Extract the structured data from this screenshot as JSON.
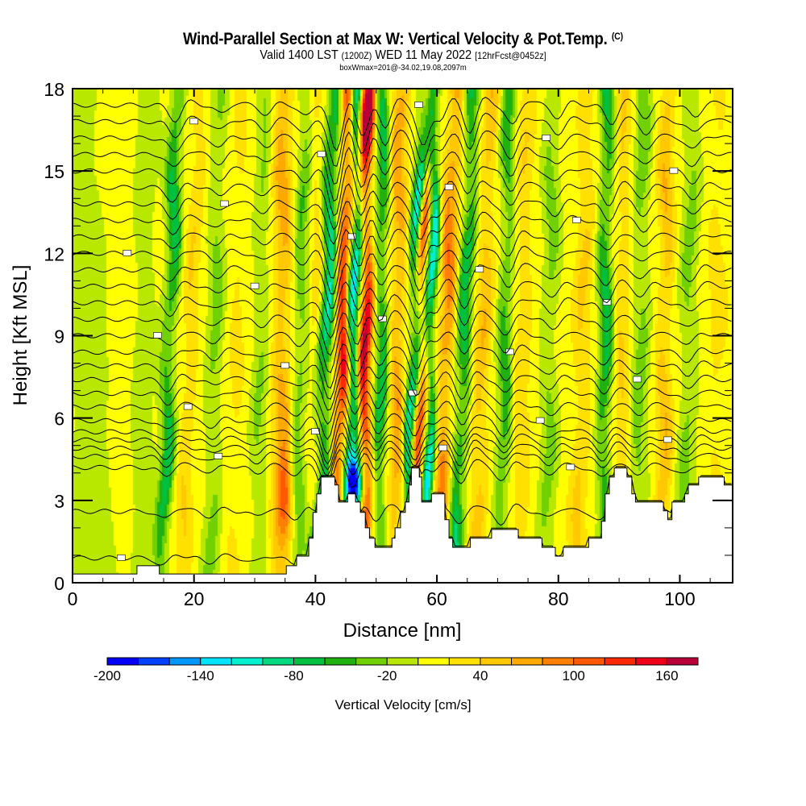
{
  "header": {
    "title": "Wind-Parallel Section at Max W: Vertical Velocity & Pot.Temp.",
    "copyright_mark": "(C)",
    "valid_prefix": "Valid 1400 LST",
    "valid_utc": "(1200Z)",
    "valid_date": "WED 11 May 2022",
    "forecast_info": "[12hrFcst@0452z]",
    "box_wmax": "boxWmax=201@-34.02,19.08,2097m"
  },
  "chart_data": {
    "type": "heatmap",
    "title": "Wind-Parallel Section at Max W: Vertical Velocity & Pot.Temp.",
    "xlabel": "Distance [nm]",
    "ylabel": "Height [Kft MSL]",
    "xlim": [
      0,
      108.7
    ],
    "ylim": [
      0,
      18
    ],
    "x_ticks": [
      0,
      20,
      40,
      60,
      80,
      100
    ],
    "x_minor_step": 5,
    "y_ticks": [
      0,
      3,
      6,
      9,
      12,
      15,
      18
    ],
    "y_minor_step": 1,
    "grid": false,
    "colorbar": {
      "title": "Vertical Velocity [cm/s]",
      "placement": "bottom",
      "levels": [
        -200,
        -180,
        -160,
        -140,
        -120,
        -100,
        -80,
        -60,
        -40,
        -20,
        0,
        20,
        40,
        60,
        80,
        100,
        120,
        140,
        160,
        180
      ],
      "tick_labels": [
        "-200",
        "-140",
        "-80",
        "-20",
        "40",
        "100",
        "160"
      ],
      "tick_values": [
        -200,
        -140,
        -80,
        -20,
        40,
        100,
        160
      ],
      "colors": [
        "#0000f8",
        "#0040ff",
        "#0098ff",
        "#00e4ff",
        "#00f0d0",
        "#00d880",
        "#00c040",
        "#20b010",
        "#70d000",
        "#b8e800",
        "#ffff00",
        "#ffe000",
        "#ffc800",
        "#ffa800",
        "#ff8000",
        "#ff5800",
        "#ff2800",
        "#f00018",
        "#b80038"
      ]
    },
    "vertical_velocity_features": [
      {
        "x": 2,
        "slope": -0.3,
        "width": 4,
        "amp": -25
      },
      {
        "x": 9,
        "slope": 0.05,
        "width": 1.6,
        "amp": 12
      },
      {
        "x": 11.5,
        "slope": 0.1,
        "width": 2,
        "amp": -28
      },
      {
        "x": 16,
        "slope": 0.25,
        "width": 1.2,
        "amp": -85
      },
      {
        "x": 19.5,
        "slope": 0.3,
        "width": 1.4,
        "amp": 35
      },
      {
        "x": 23.5,
        "slope": 0.1,
        "width": 1.5,
        "amp": -40
      },
      {
        "x": 27,
        "slope": 0.2,
        "width": 2,
        "amp": 18
      },
      {
        "x": 31,
        "slope": 0.1,
        "width": 1.5,
        "amp": -35
      },
      {
        "x": 34.5,
        "slope": 0.05,
        "width": 1.6,
        "amp": 70
      },
      {
        "x": 37.5,
        "slope": 0.15,
        "width": 1.2,
        "amp": -55
      },
      {
        "x": 40.5,
        "slope": -0.05,
        "width": 1.2,
        "amp": 35
      },
      {
        "x": 41.8,
        "slope": 0.25,
        "width": 1.3,
        "amp": -130
      },
      {
        "x": 44.5,
        "slope": 0.2,
        "width": 1.3,
        "amp": 150
      },
      {
        "x": 46.2,
        "slope": 0.2,
        "width": 1.1,
        "amp": -175
      },
      {
        "x": 48.3,
        "slope": 0.05,
        "width": 1.1,
        "amp": 170
      },
      {
        "x": 50.8,
        "slope": 0.05,
        "width": 1.2,
        "amp": -90
      },
      {
        "x": 53.5,
        "slope": 0.1,
        "width": 1.4,
        "amp": 75
      },
      {
        "x": 56.3,
        "slope": 0.25,
        "width": 1.0,
        "amp": -135
      },
      {
        "x": 57.5,
        "slope": 0.15,
        "width": 1.0,
        "amp": 120
      },
      {
        "x": 59.0,
        "slope": 0.1,
        "width": 1.0,
        "amp": -140
      },
      {
        "x": 61.5,
        "slope": 0.3,
        "width": 1.5,
        "amp": 95
      },
      {
        "x": 64.5,
        "slope": 0.3,
        "width": 1.3,
        "amp": -95
      },
      {
        "x": 67.5,
        "slope": 0.25,
        "width": 1.5,
        "amp": 55
      },
      {
        "x": 71.3,
        "slope": 0.15,
        "width": 1.3,
        "amp": -70
      },
      {
        "x": 74,
        "slope": 0.1,
        "width": 1.6,
        "amp": 35
      },
      {
        "x": 78.5,
        "slope": 0.1,
        "width": 1.4,
        "amp": -40
      },
      {
        "x": 84,
        "slope": 0.15,
        "width": 1.5,
        "amp": 40
      },
      {
        "x": 87.7,
        "slope": 0.05,
        "width": 1.2,
        "amp": -90
      },
      {
        "x": 90.5,
        "slope": 0.1,
        "width": 1.4,
        "amp": 40
      },
      {
        "x": 93.5,
        "slope": 0.05,
        "width": 1.4,
        "amp": -45
      },
      {
        "x": 97.5,
        "slope": 0.1,
        "width": 1.3,
        "amp": 55
      },
      {
        "x": 101.5,
        "slope": 0.1,
        "width": 1.5,
        "amp": -40
      },
      {
        "x": 106,
        "slope": 0.05,
        "width": 2,
        "amp": 20
      }
    ],
    "vertical_velocity_blobs": [
      {
        "x": 46.5,
        "y": 3.6,
        "rx": 1.2,
        "ry": 1.0,
        "amp": -200
      },
      {
        "x": 35,
        "y": 2.8,
        "rx": 1.3,
        "ry": 1.6,
        "amp": 70
      },
      {
        "x": 47.8,
        "y": 17.3,
        "rx": 1.0,
        "ry": 1.5,
        "amp": 120
      },
      {
        "x": 44.8,
        "y": 8.2,
        "rx": 1.0,
        "ry": 1.8,
        "amp": 60
      }
    ],
    "isentrope_base_heights_kft": [
      0.9,
      2.6,
      4.2,
      4.6,
      4.9,
      5.2,
      5.5,
      5.9,
      6.4,
      6.9,
      7.4,
      7.9,
      8.4,
      9.0,
      9.6,
      10.2,
      10.8,
      11.4,
      12.0,
      12.6,
      13.2,
      13.8,
      14.4,
      15.0,
      15.6,
      16.2,
      16.8,
      17.4
    ],
    "isentrope_waves": [
      {
        "x": 16,
        "dip": -0.5
      },
      {
        "x": 23.5,
        "dip": -0.3
      },
      {
        "x": 31,
        "dip": -0.3
      },
      {
        "x": 37.5,
        "dip": -0.4
      },
      {
        "x": 42.5,
        "dip": -1.6
      },
      {
        "x": 46.8,
        "dip": -1.2
      },
      {
        "x": 50.5,
        "dip": -0.9
      },
      {
        "x": 56.8,
        "dip": -1.4
      },
      {
        "x": 59.5,
        "dip": -0.8
      },
      {
        "x": 64.5,
        "dip": -0.9
      },
      {
        "x": 71.5,
        "dip": -0.7
      },
      {
        "x": 79,
        "dip": -0.4
      },
      {
        "x": 87.8,
        "dip": -0.6
      },
      {
        "x": 93.5,
        "dip": -0.4
      },
      {
        "x": 101.5,
        "dip": -0.4
      }
    ],
    "terrain_profile_kft": [
      [
        0,
        0.32
      ],
      [
        10.6,
        0.32
      ],
      [
        10.6,
        0.62
      ],
      [
        14.3,
        0.62
      ],
      [
        14.3,
        0.32
      ],
      [
        35.2,
        0.32
      ],
      [
        35.2,
        0.62
      ],
      [
        36.9,
        0.62
      ],
      [
        36.9,
        0.97
      ],
      [
        38.9,
        0.97
      ],
      [
        38.9,
        1.62
      ],
      [
        39.6,
        1.62
      ],
      [
        39.6,
        2.56
      ],
      [
        40.2,
        2.56
      ],
      [
        40.2,
        3.24
      ],
      [
        40.9,
        3.24
      ],
      [
        40.9,
        3.85
      ],
      [
        43.2,
        3.85
      ],
      [
        43.2,
        3.56
      ],
      [
        43.8,
        3.56
      ],
      [
        43.8,
        2.94
      ],
      [
        45.3,
        2.94
      ],
      [
        45.3,
        3.24
      ],
      [
        46.6,
        3.24
      ],
      [
        46.6,
        2.94
      ],
      [
        47.4,
        2.94
      ],
      [
        47.4,
        2.56
      ],
      [
        48.2,
        2.56
      ],
      [
        48.2,
        2.0
      ],
      [
        48.9,
        2.0
      ],
      [
        48.9,
        1.62
      ],
      [
        49.8,
        1.62
      ],
      [
        49.8,
        1.29
      ],
      [
        52.6,
        1.29
      ],
      [
        52.6,
        1.62
      ],
      [
        53.1,
        1.62
      ],
      [
        53.1,
        2.0
      ],
      [
        54.0,
        2.0
      ],
      [
        54.0,
        2.56
      ],
      [
        54.8,
        2.56
      ],
      [
        54.8,
        2.94
      ],
      [
        55.4,
        2.94
      ],
      [
        55.4,
        3.56
      ],
      [
        55.8,
        3.56
      ],
      [
        55.8,
        4.18
      ],
      [
        57.1,
        4.18
      ],
      [
        57.1,
        3.85
      ],
      [
        57.5,
        3.85
      ],
      [
        57.5,
        2.94
      ],
      [
        59.1,
        2.94
      ],
      [
        59.1,
        3.24
      ],
      [
        61.3,
        3.24
      ],
      [
        61.3,
        2.3
      ],
      [
        62.0,
        2.3
      ],
      [
        62.0,
        1.62
      ],
      [
        62.6,
        1.62
      ],
      [
        62.6,
        1.29
      ],
      [
        65.5,
        1.29
      ],
      [
        65.5,
        1.62
      ],
      [
        69.0,
        1.62
      ],
      [
        69.0,
        1.94
      ],
      [
        73.4,
        1.94
      ],
      [
        73.4,
        1.62
      ],
      [
        77.3,
        1.62
      ],
      [
        77.3,
        1.29
      ],
      [
        79.5,
        1.29
      ],
      [
        79.5,
        0.97
      ],
      [
        80.8,
        0.97
      ],
      [
        80.8,
        1.29
      ],
      [
        85.0,
        1.29
      ],
      [
        85.0,
        1.62
      ],
      [
        87.1,
        1.62
      ],
      [
        87.1,
        2.24
      ],
      [
        87.7,
        2.24
      ],
      [
        87.7,
        3.24
      ],
      [
        88.4,
        3.24
      ],
      [
        88.4,
        3.85
      ],
      [
        89.2,
        3.85
      ],
      [
        89.2,
        4.18
      ],
      [
        91.3,
        4.18
      ],
      [
        91.3,
        3.85
      ],
      [
        92.1,
        3.85
      ],
      [
        92.1,
        3.24
      ],
      [
        92.7,
        3.24
      ],
      [
        92.7,
        2.94
      ],
      [
        97.3,
        2.94
      ],
      [
        97.3,
        2.62
      ],
      [
        98.0,
        2.62
      ],
      [
        98.0,
        2.3
      ],
      [
        98.7,
        2.3
      ],
      [
        98.7,
        2.94
      ],
      [
        100.8,
        2.94
      ],
      [
        100.8,
        3.24
      ],
      [
        101.4,
        3.24
      ],
      [
        101.4,
        3.56
      ],
      [
        103.1,
        3.56
      ],
      [
        103.1,
        3.85
      ],
      [
        107.3,
        3.85
      ],
      [
        107.3,
        3.56
      ],
      [
        108.7,
        3.56
      ]
    ]
  }
}
